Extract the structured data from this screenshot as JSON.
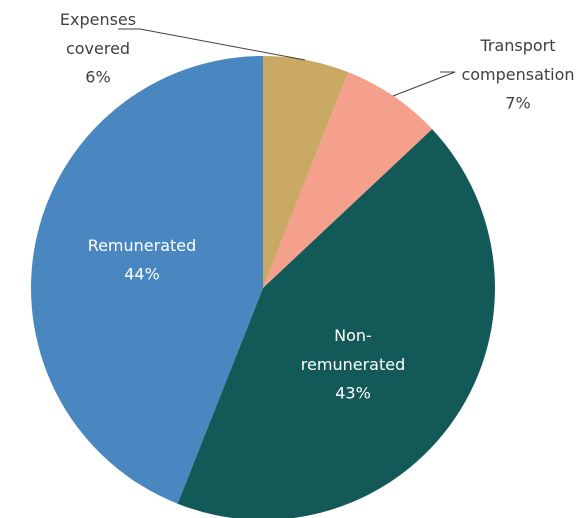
{
  "chart_data": {
    "type": "pie",
    "categories": [
      "Expenses covered",
      "Transport compensation",
      "Non-remunerated",
      "Remunerated"
    ],
    "values": [
      6,
      7,
      43,
      44
    ],
    "value_labels": [
      "6%",
      "7%",
      "43%",
      "44%"
    ],
    "colors": [
      "#c9a964",
      "#f4a08c",
      "#135958",
      "#4a86c0"
    ]
  }
}
